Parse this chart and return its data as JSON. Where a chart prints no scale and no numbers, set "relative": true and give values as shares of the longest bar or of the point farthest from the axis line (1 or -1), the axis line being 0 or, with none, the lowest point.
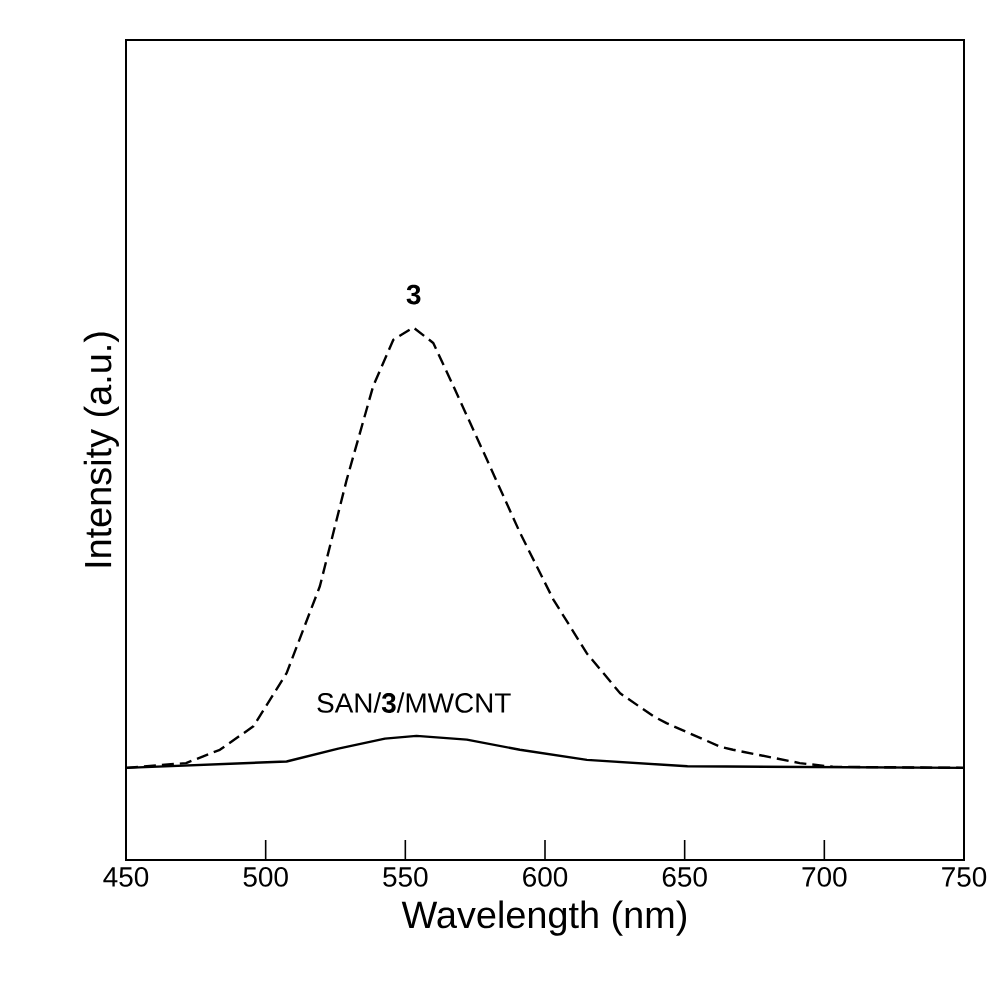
{
  "chart_data": {
    "type": "line",
    "relative": true,
    "xlabel": "Wavelength (nm)",
    "ylabel": "Intensity (a.u.)",
    "xlim": [
      450,
      750
    ],
    "xticks": [
      450,
      500,
      550,
      600,
      650,
      700,
      750
    ],
    "grid": false,
    "marker": "none",
    "series": [
      {
        "color": "#000000",
        "line_style": "dashed",
        "x": [
          450,
          471.5,
          483.6,
          495.6,
          507.5,
          519.4,
          529,
          538.5,
          545.7,
          552.9,
          560,
          567.2,
          579.2,
          591.1,
          603,
          615,
          626.9,
          638.8,
          643.5,
          662.6,
          667.3,
          691.2,
          703,
          750
        ],
        "values": [
          0.173,
          0.182,
          0.207,
          0.251,
          0.351,
          0.514,
          0.714,
          0.89,
          0.977,
          1.0,
          0.971,
          0.89,
          0.752,
          0.614,
          0.489,
          0.388,
          0.313,
          0.27,
          0.257,
          0.213,
          0.207,
          0.182,
          0.175,
          0.173
        ]
      },
      {
        "color": "#000000",
        "line_style": "solid",
        "x": [
          450,
          507.5,
          526,
          542.7,
          554,
          572,
          591,
          615,
          651,
          750
        ],
        "values": [
          0.173,
          0.185,
          0.209,
          0.228,
          0.233,
          0.226,
          0.207,
          0.188,
          0.176,
          0.173
        ]
      }
    ],
    "annotations": [
      {
        "text": "**3**",
        "x": 553,
        "y": 1.0
      },
      {
        "text": "SAN/**3**/MWCNT",
        "x": 553,
        "y": 0.233
      }
    ]
  }
}
